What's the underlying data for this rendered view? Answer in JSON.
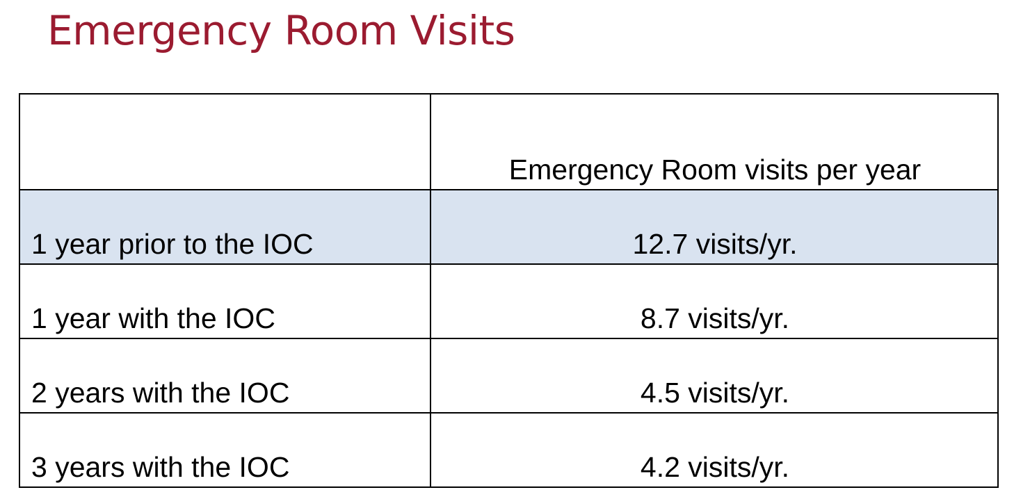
{
  "title": "Emergency Room Visits",
  "table": {
    "header": {
      "label_column": "",
      "value_column": "Emergency Room visits per year"
    },
    "rows": [
      {
        "label": "1 year prior to the IOC",
        "value": "12.7 visits/yr."
      },
      {
        "label": "1 year with the IOC",
        "value": "8.7 visits/yr."
      },
      {
        "label": "2 years with the IOC",
        "value": "4.5 visits/yr."
      },
      {
        "label": "3 years with the IOC",
        "value": "4.2 visits/yr."
      }
    ]
  },
  "colors": {
    "title": "#9b1b30",
    "highlight_row": "#d9e3f0",
    "border": "#000000"
  }
}
